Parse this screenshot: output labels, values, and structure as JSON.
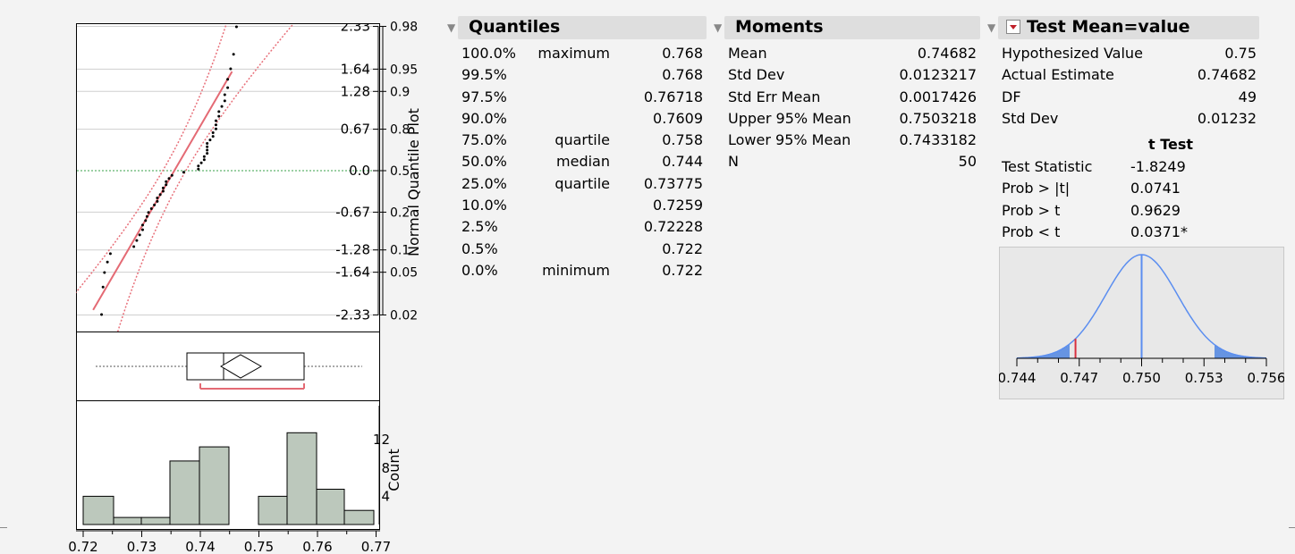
{
  "quantile_plot": {
    "axis_label": "Normal Quantile Plot",
    "z_ticks": [
      "2.33",
      "1.64",
      "1.28",
      "0.67",
      "0.0",
      "-0.67",
      "-1.28",
      "-1.64",
      "-2.33"
    ],
    "p_ticks": [
      "0.98",
      "0.95",
      "0.9",
      "0.8",
      "0.5",
      "0.2",
      "0.1",
      "0.05",
      "0.02"
    ]
  },
  "histogram": {
    "axis_label": "Count",
    "count_ticks": [
      "12",
      "8",
      "4"
    ],
    "x_ticks": [
      "0.72",
      "0.73",
      "0.74",
      "0.75",
      "0.76",
      "0.77"
    ]
  },
  "quantiles": {
    "title": "Quantiles",
    "rows": [
      {
        "pct": "100.0%",
        "label": "maximum",
        "value": "0.768"
      },
      {
        "pct": "99.5%",
        "label": "",
        "value": "0.768"
      },
      {
        "pct": "97.5%",
        "label": "",
        "value": "0.76718"
      },
      {
        "pct": "90.0%",
        "label": "",
        "value": "0.7609"
      },
      {
        "pct": "75.0%",
        "label": "quartile",
        "value": "0.758"
      },
      {
        "pct": "50.0%",
        "label": "median",
        "value": "0.744"
      },
      {
        "pct": "25.0%",
        "label": "quartile",
        "value": "0.73775"
      },
      {
        "pct": "10.0%",
        "label": "",
        "value": "0.7259"
      },
      {
        "pct": "2.5%",
        "label": "",
        "value": "0.72228"
      },
      {
        "pct": "0.5%",
        "label": "",
        "value": "0.722"
      },
      {
        "pct": "0.0%",
        "label": "minimum",
        "value": "0.722"
      }
    ]
  },
  "moments": {
    "title": "Moments",
    "rows": [
      {
        "label": "Mean",
        "value": "0.74682"
      },
      {
        "label": "Std Dev",
        "value": "0.0123217"
      },
      {
        "label": "Std Err Mean",
        "value": "0.0017426"
      },
      {
        "label": "Upper 95% Mean",
        "value": "0.7503218"
      },
      {
        "label": "Lower 95% Mean",
        "value": "0.7433182"
      },
      {
        "label": "N",
        "value": "50"
      }
    ]
  },
  "test_mean": {
    "title": "Test Mean=value",
    "rows": [
      {
        "label": "Hypothesized Value",
        "value": "0.75"
      },
      {
        "label": "Actual Estimate",
        "value": "0.74682"
      },
      {
        "label": "DF",
        "value": "49"
      },
      {
        "label": "Std Dev",
        "value": "0.01232"
      }
    ],
    "t_test_heading": "t Test",
    "t_rows": [
      {
        "label": "Test Statistic",
        "value": "-1.8249"
      },
      {
        "label": "Prob > |t|",
        "value": "0.0741"
      },
      {
        "label": "Prob > t",
        "value": "0.9629"
      },
      {
        "label": "Prob < t",
        "value": "0.0371*"
      }
    ],
    "axis_ticks": [
      "0.744",
      "0.747",
      "0.750",
      "0.753",
      "0.756"
    ],
    "colors": {
      "curve": "#5b8ef0",
      "shade": "#3a78e0",
      "estimate": "#d83040",
      "background": "#e8e8e8"
    }
  },
  "colors": {
    "fit_line": "#e46a74",
    "confidence": "#e8707a",
    "histogram_bar": "#bcc8bc",
    "mean_line": "#3aa04a"
  }
}
